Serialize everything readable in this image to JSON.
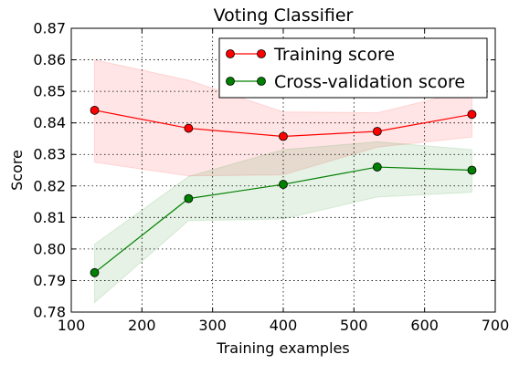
{
  "chart_data": {
    "type": "line",
    "title": "Voting Classifier",
    "xlabel": "Training examples",
    "ylabel": "Score",
    "xlim": [
      100,
      700
    ],
    "ylim": [
      0.78,
      0.87
    ],
    "xticks": [
      100,
      200,
      300,
      400,
      500,
      600,
      700
    ],
    "yticks": [
      0.78,
      0.79,
      0.8,
      0.81,
      0.82,
      0.83,
      0.84,
      0.85,
      0.86,
      0.87
    ],
    "xtick_labels": [
      "100",
      "200",
      "300",
      "400",
      "500",
      "600",
      "700"
    ],
    "ytick_labels": [
      "0.78",
      "0.79",
      "0.80",
      "0.81",
      "0.82",
      "0.83",
      "0.84",
      "0.85",
      "0.86",
      "0.87"
    ],
    "grid": true,
    "legend_position": "top-right",
    "x": [
      133,
      266,
      400,
      533,
      667
    ],
    "series": [
      {
        "name": "Training score",
        "color": "#ff0000",
        "band_color": "#ff0000",
        "values": [
          0.844,
          0.8383,
          0.8357,
          0.8373,
          0.8427
        ],
        "upper": [
          0.86,
          0.8535,
          0.8435,
          0.8432,
          0.8505
        ],
        "lower": [
          0.8275,
          0.8232,
          0.8235,
          0.8323,
          0.8355
        ]
      },
      {
        "name": "Cross-validation score",
        "color": "#008000",
        "band_color": "#008000",
        "values": [
          0.7925,
          0.816,
          0.8205,
          0.826,
          0.825
        ],
        "upper": [
          0.8015,
          0.823,
          0.8315,
          0.834,
          0.8315
        ],
        "lower": [
          0.783,
          0.809,
          0.8095,
          0.8165,
          0.818
        ]
      }
    ]
  }
}
